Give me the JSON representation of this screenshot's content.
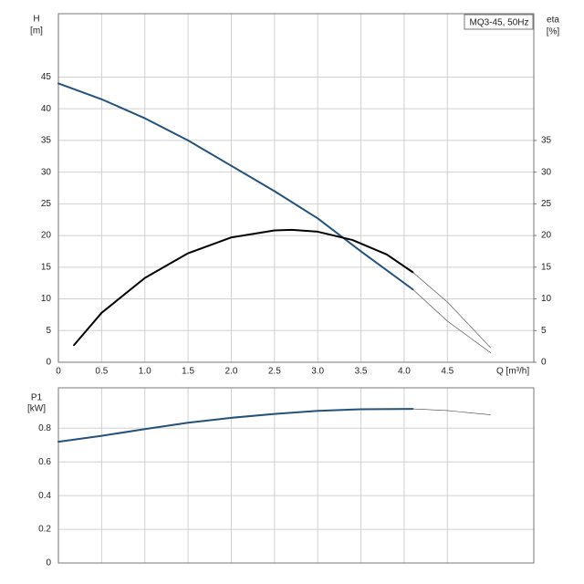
{
  "chart_data": [
    {
      "type": "line",
      "title": "MQ3-45, 50Hz",
      "ylabel": "H",
      "yunit": "[m]",
      "y2label": "eta",
      "y2unit": "[%]",
      "xlabel": "Q [m³/h]",
      "xlim": [
        0,
        5.5
      ],
      "xticks": [
        0,
        0.5,
        {
          "value": 1,
          "label": "1.0"
        },
        1.5,
        {
          "value": 2,
          "label": "2.0"
        },
        2.5,
        {
          "value": 3,
          "label": "3.0"
        },
        3.5,
        {
          "value": 4,
          "label": "4.0"
        },
        4.5
      ],
      "ylim": [
        0,
        55
      ],
      "yticks": [
        0,
        5,
        10,
        15,
        20,
        25,
        30,
        35,
        40,
        45
      ],
      "y2lim": [
        0,
        55
      ],
      "y2ticks": [
        0,
        5,
        10,
        15,
        20,
        25,
        30,
        35
      ],
      "grid": true,
      "series": [
        {
          "color": "#24527a",
          "line_width": 2,
          "x": [
            0,
            0.5,
            1.0,
            1.5,
            2.0,
            2.5,
            3.0,
            3.5,
            4.1
          ],
          "values": [
            44,
            41.5,
            38.5,
            35,
            31,
            27,
            22.7,
            17.5,
            11.5
          ]
        },
        {
          "color": "#444444",
          "line_width": 0.6,
          "x": [
            4.1,
            4.5,
            5.0
          ],
          "values": [
            11.5,
            6.5,
            1.5
          ]
        },
        {
          "color": "#000000",
          "line_width": 2,
          "axis": "y2",
          "x": [
            0.18,
            0.5,
            1.0,
            1.5,
            2.0,
            2.5,
            2.7,
            3.0,
            3.4,
            3.8,
            4.1
          ],
          "values": [
            2.7,
            7.8,
            13.3,
            17.2,
            19.7,
            20.8,
            20.9,
            20.6,
            19.3,
            17,
            14.2
          ]
        },
        {
          "color": "#444444",
          "line_width": 0.6,
          "axis": "y2",
          "x": [
            4.1,
            4.5,
            5.0
          ],
          "values": [
            14.2,
            9.5,
            2.3
          ]
        }
      ]
    },
    {
      "type": "line",
      "ylabel": "P1",
      "yunit": "[kW]",
      "xlim": [
        0,
        5.5
      ],
      "ylim": [
        0,
        1.04
      ],
      "yticks": [
        0,
        0.2,
        0.4,
        0.6,
        0.8
      ],
      "grid": true,
      "series": [
        {
          "color": "#24527a",
          "line_width": 2,
          "x": [
            0,
            0.5,
            1.0,
            1.5,
            2.0,
            2.5,
            3.0,
            3.5,
            4.1
          ],
          "values": [
            0.72,
            0.755,
            0.795,
            0.833,
            0.862,
            0.885,
            0.903,
            0.913,
            0.915
          ]
        },
        {
          "color": "#444444",
          "line_width": 0.6,
          "x": [
            4.1,
            4.5,
            5.0
          ],
          "values": [
            0.915,
            0.905,
            0.88
          ]
        }
      ]
    }
  ]
}
